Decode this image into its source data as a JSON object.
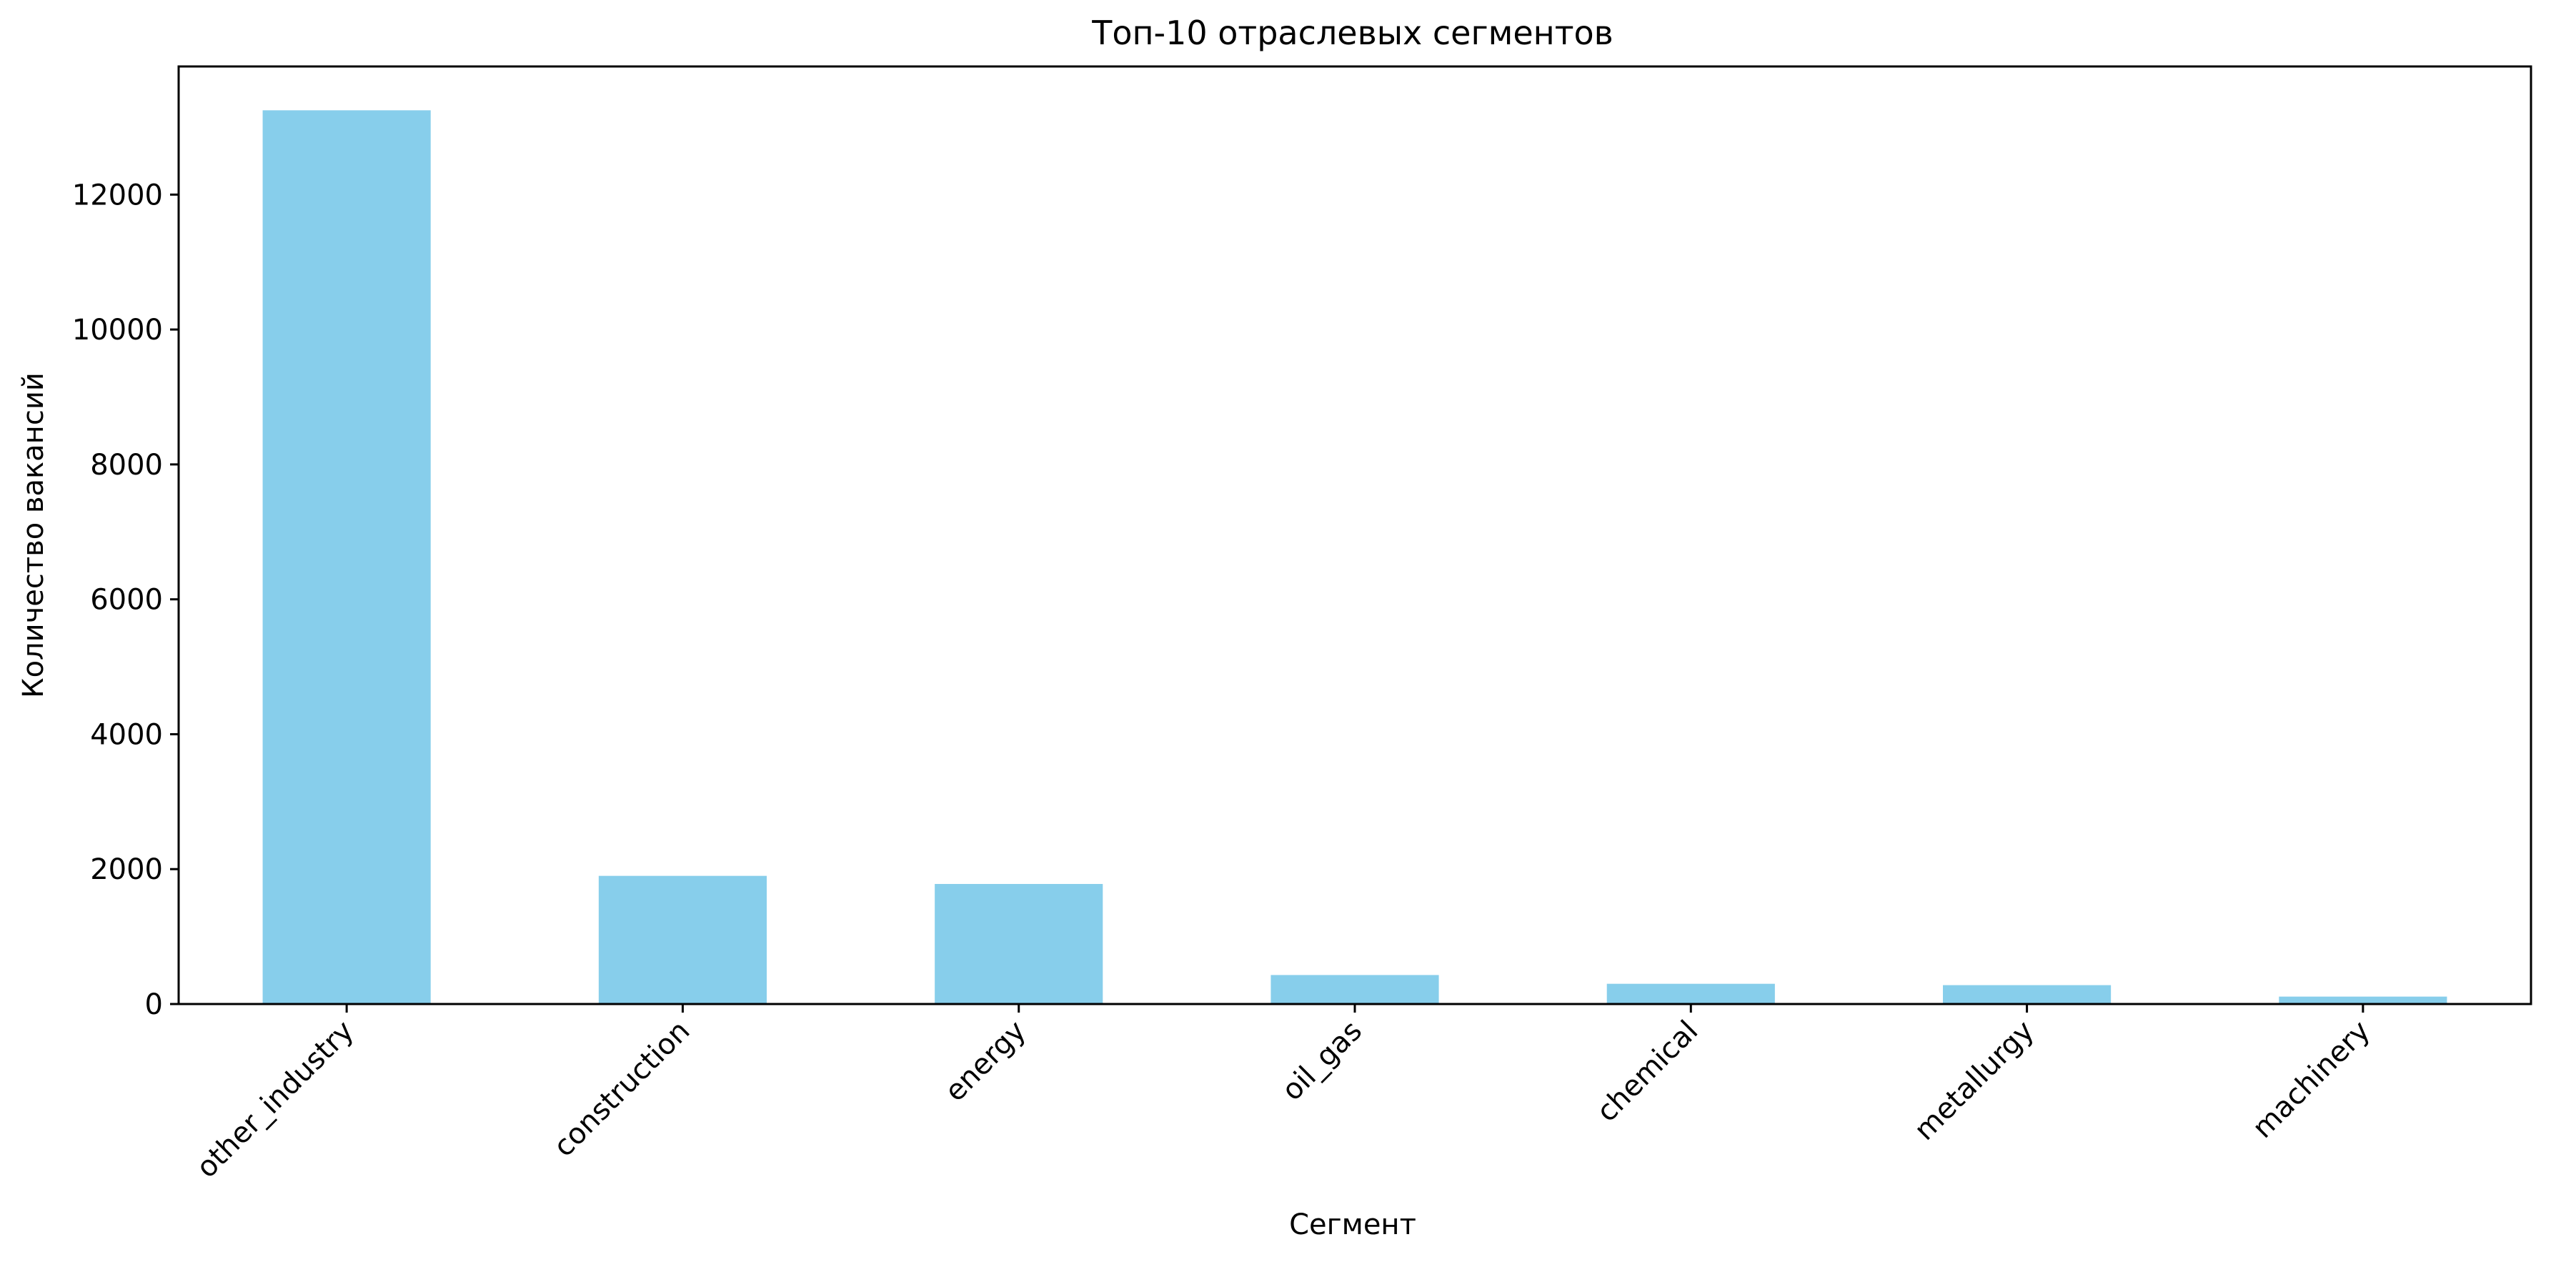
{
  "chart_data": {
    "type": "bar",
    "title": "Топ-10 отраслевых сегментов",
    "xlabel": "Сегмент",
    "ylabel": "Количество вакансий",
    "categories": [
      "other_industry",
      "construction",
      "energy",
      "oil_gas",
      "chemical",
      "metallurgy",
      "machinery"
    ],
    "values": [
      13250,
      1900,
      1780,
      430,
      300,
      280,
      110
    ],
    "ylim": [
      0,
      13900
    ],
    "yticks": [
      0,
      2000,
      4000,
      6000,
      8000,
      10000,
      12000
    ],
    "ytick_labels": [
      "0",
      "2000",
      "4000",
      "6000",
      "8000",
      "10000",
      "12000"
    ],
    "grid": false,
    "legend": "none",
    "bar_color": "#87ceeb",
    "x_tick_rotation": 45
  }
}
